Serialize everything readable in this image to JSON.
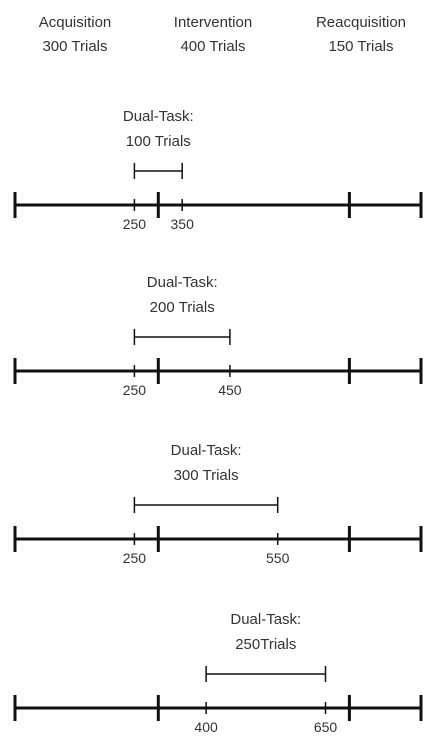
{
  "phases": [
    {
      "name": "Acquisition",
      "trials": "300 Trials"
    },
    {
      "name": "Intervention",
      "trials": "400 Trials"
    },
    {
      "name": "Reacquisition",
      "trials": "150 Trials"
    }
  ],
  "timeline_boundaries": [
    0,
    300,
    700,
    850
  ],
  "panels": [
    {
      "dual_task_title": "Dual-Task:",
      "dual_task_trials": "100 Trials",
      "interval": [
        250,
        350
      ],
      "tick_labels": [
        "250",
        "350"
      ]
    },
    {
      "dual_task_title": "Dual-Task:",
      "dual_task_trials": "200 Trials",
      "interval": [
        250,
        450
      ],
      "tick_labels": [
        "250",
        "450"
      ]
    },
    {
      "dual_task_title": "Dual-Task:",
      "dual_task_trials": "300 Trials",
      "interval": [
        250,
        550
      ],
      "tick_labels": [
        "250",
        "550"
      ]
    },
    {
      "dual_task_title": "Dual-Task:",
      "dual_task_trials": "250Trials",
      "interval": [
        400,
        650
      ],
      "tick_labels": [
        "400",
        "650"
      ]
    }
  ]
}
